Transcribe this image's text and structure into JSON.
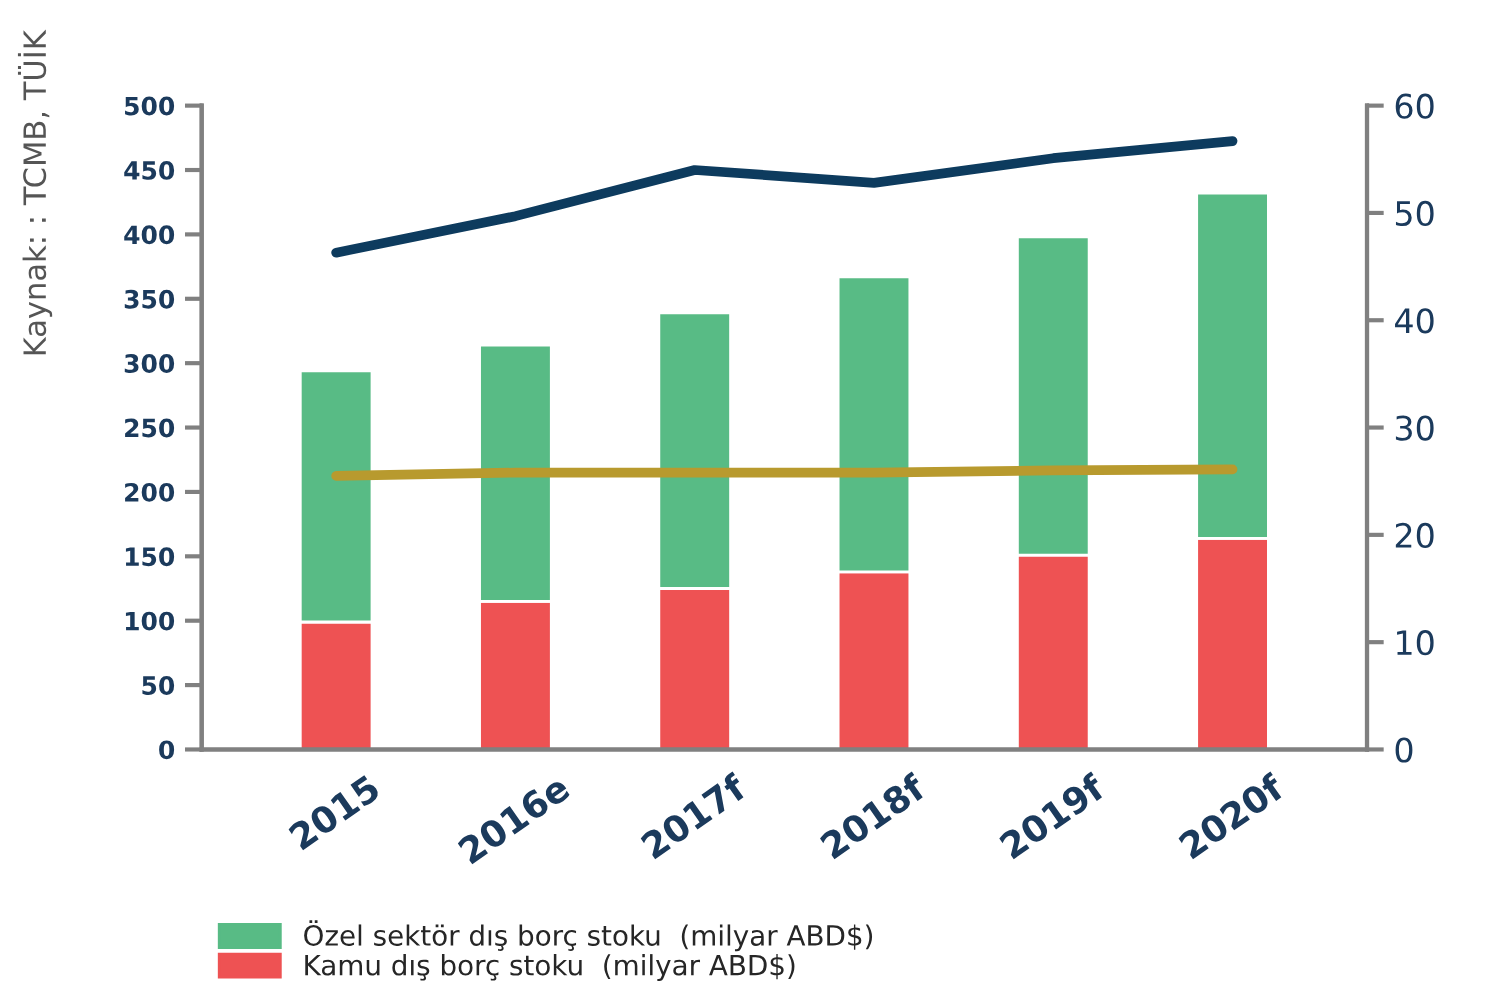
{
  "chart_data": {
    "type": "bar",
    "stacked": true,
    "categories": [
      "2015",
      "2016e",
      "2017f",
      "2018f",
      "2019f",
      "2020f"
    ],
    "series": [
      {
        "name": "Kamu dış borç stoku  (milyar ABD$)",
        "color": "#ee5253",
        "values": [
          99,
          115,
          125,
          138,
          151,
          164
        ]
      },
      {
        "name": "Özel sektör dış borç stoku  (milyar ABD$)",
        "color": "#58bb85",
        "values": [
          195,
          199,
          214,
          229,
          247,
          268
        ]
      },
      {
        "type": "line",
        "axis": "y2",
        "color": "#0d3b5e",
        "values": [
          46.3,
          49.7,
          54.0,
          52.8,
          55.1,
          56.7
        ]
      },
      {
        "type": "line",
        "axis": "y2",
        "color": "#b89a2e",
        "values": [
          25.5,
          25.8,
          25.8,
          25.8,
          26.0,
          26.1
        ]
      }
    ],
    "ylim": [
      0,
      500
    ],
    "yticks": [
      0,
      50,
      100,
      150,
      200,
      250,
      300,
      350,
      400,
      450,
      500
    ],
    "y2lim": [
      0,
      60
    ],
    "y2ticks": [
      0,
      10,
      20,
      30,
      40,
      50,
      60
    ],
    "legend": "bottom left",
    "grid": false,
    "annotations": [
      "Kaynak: : TCMB, TÜİK"
    ]
  }
}
